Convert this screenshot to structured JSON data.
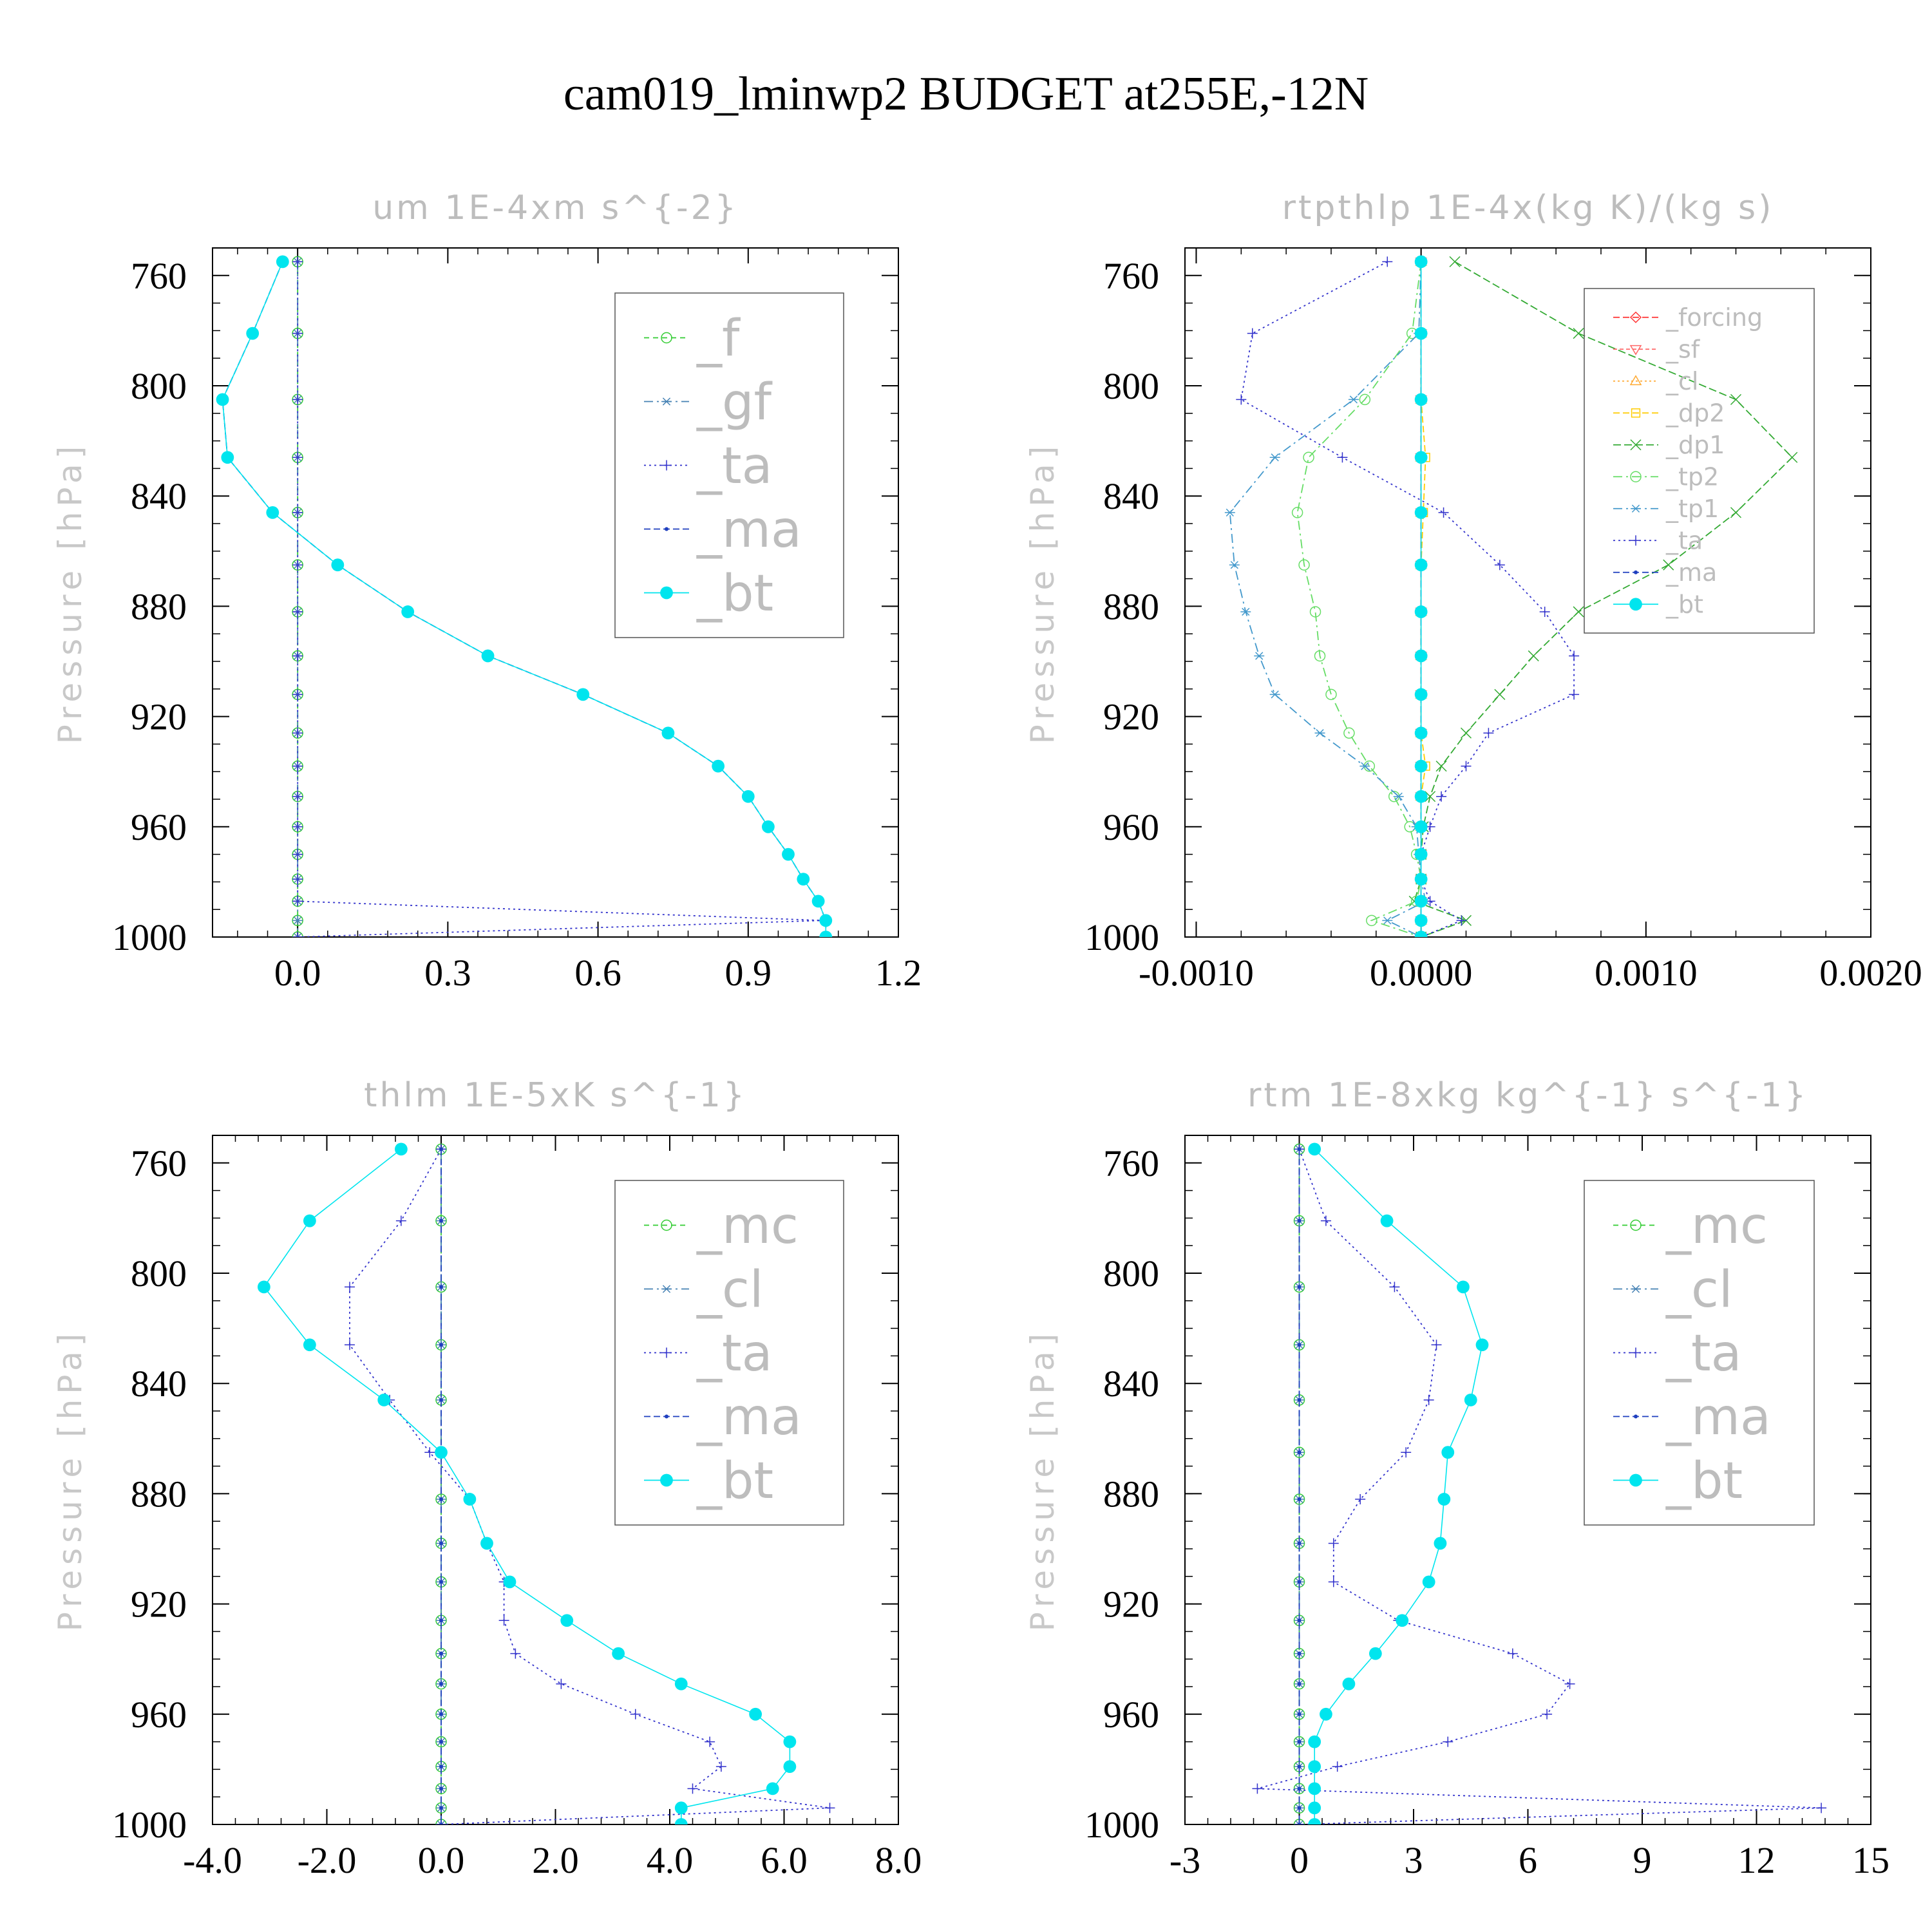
{
  "title": "cam019_lminwp2  BUDGET at255E,-12N",
  "chart_data": [
    {
      "id": "um",
      "type": "line",
      "title": "um   1E-4xm s^{-2}",
      "ylabel": "Pressure [hPa]",
      "xlim": [
        -0.17,
        1.2
      ],
      "ylim": [
        750,
        1000
      ],
      "xticks": [
        0.0,
        0.3,
        0.6,
        0.9,
        1.2
      ],
      "xtick_labels": [
        "0.0",
        "0.3",
        "0.6",
        "0.9",
        "1.2"
      ],
      "yticks": [
        760,
        800,
        840,
        880,
        920,
        960,
        1000
      ],
      "ytick_labels": [
        "760",
        "800",
        "840",
        "880",
        "920",
        "960",
        "1000"
      ],
      "legend_position": "top-right",
      "levels": [
        755,
        781,
        805,
        826,
        846,
        865,
        882,
        898,
        912,
        926,
        938,
        949,
        960,
        970,
        979,
        987,
        994,
        1000
      ],
      "series": [
        {
          "name": "_f",
          "color": "#33cc33",
          "marker": "circle-open",
          "dash": "8,6",
          "values": [
            0,
            0,
            0,
            0,
            0,
            0,
            0,
            0,
            0,
            0,
            0,
            0,
            0,
            0,
            0,
            0,
            0,
            0
          ]
        },
        {
          "name": "_gf",
          "color": "#4682b4",
          "marker": "asterisk",
          "dash": "14,6,3,6",
          "values": [
            0,
            0,
            0,
            0,
            0,
            0,
            0,
            0,
            0,
            0,
            0,
            0,
            0,
            0,
            0,
            0,
            0,
            0
          ]
        },
        {
          "name": "_ta",
          "color": "#3333cc",
          "marker": "plus",
          "dash": "3,5",
          "values": [
            0,
            0,
            0,
            0,
            0,
            0,
            0,
            0,
            0,
            0,
            0,
            0,
            0,
            0,
            0,
            0,
            1.05,
            0
          ]
        },
        {
          "name": "_ma",
          "color": "#1f3fbf",
          "marker": "dot",
          "dash": "10,5",
          "values": [
            -0.03,
            -0.09,
            -0.15,
            -0.14,
            -0.05,
            0.08,
            0.22,
            0.38,
            0.57,
            0.74,
            0.84,
            0.9,
            0.94,
            0.98,
            1.01,
            1.04,
            1.055,
            1.055
          ]
        },
        {
          "name": "_bt",
          "color": "#00e5ee",
          "marker": "dot-filled",
          "dash": "",
          "values": [
            -0.03,
            -0.09,
            -0.15,
            -0.14,
            -0.05,
            0.08,
            0.22,
            0.38,
            0.57,
            0.74,
            0.84,
            0.9,
            0.94,
            0.98,
            1.01,
            1.04,
            1.055,
            1.055
          ]
        }
      ]
    },
    {
      "id": "rtpthlp",
      "type": "line",
      "title": "rtpthlp   1E-4x(kg K)/(kg s)",
      "ylabel": "Pressure [hPa]",
      "xlim": [
        -0.00105,
        0.002
      ],
      "ylim": [
        750,
        1000
      ],
      "xticks": [
        -0.001,
        0.0,
        0.001,
        0.002
      ],
      "xtick_labels": [
        "-0.0010",
        "0.0000",
        "0.0010",
        "0.0020"
      ],
      "yticks": [
        760,
        800,
        840,
        880,
        920,
        960,
        1000
      ],
      "ytick_labels": [
        "760",
        "800",
        "840",
        "880",
        "920",
        "960",
        "1000"
      ],
      "legend_position": "top-right",
      "levels": [
        755,
        781,
        805,
        826,
        846,
        865,
        882,
        898,
        912,
        926,
        938,
        949,
        960,
        970,
        979,
        987,
        994,
        1000
      ],
      "series": [
        {
          "name": "_forcing",
          "color": "#ff3333",
          "marker": "diamond-open",
          "dash": "10,5",
          "values": [
            0,
            0,
            0,
            0,
            0,
            0,
            0,
            0,
            0,
            0,
            0,
            0,
            0,
            0,
            0,
            0,
            0,
            0
          ]
        },
        {
          "name": "_sf",
          "color": "#ff6666",
          "marker": "triangle-down",
          "dash": "6,4",
          "values": [
            0,
            0,
            0,
            0,
            0,
            0,
            0,
            0,
            0,
            0,
            0,
            0,
            0,
            0,
            0,
            0,
            0,
            0
          ]
        },
        {
          "name": "_cl",
          "color": "#ffaa33",
          "marker": "triangle-up",
          "dash": "3,4",
          "values": [
            0,
            0,
            0,
            0,
            0,
            0,
            0,
            0,
            0,
            0,
            0,
            0,
            0,
            0,
            0,
            0,
            0,
            0
          ]
        },
        {
          "name": "_dp2",
          "color": "#ffcc00",
          "marker": "square-open",
          "dash": "10,5",
          "values": [
            0,
            0,
            0,
            2e-05,
            1e-05,
            0,
            0,
            0,
            0,
            0,
            2e-05,
            0,
            0,
            0,
            0,
            0,
            0,
            0
          ]
        },
        {
          "name": "_dp1",
          "color": "#33aa33",
          "marker": "x",
          "dash": "12,5",
          "values": [
            0.00015,
            0.0007,
            0.0014,
            0.00165,
            0.0014,
            0.0011,
            0.0007,
            0.0005,
            0.00035,
            0.0002,
            9e-05,
            4e-05,
            1e-05,
            0,
            0,
            -3e-05,
            0.0002,
            0
          ]
        },
        {
          "name": "_tp2",
          "color": "#66dd66",
          "marker": "circle-open",
          "dash": "14,6,3,6",
          "values": [
            0,
            -4e-05,
            -0.00025,
            -0.0005,
            -0.00055,
            -0.00052,
            -0.00047,
            -0.00045,
            -0.0004,
            -0.00032,
            -0.00023,
            -0.00012,
            -5e-05,
            -2e-05,
            0,
            -2e-05,
            -0.00022,
            0
          ]
        },
        {
          "name": "_tp1",
          "color": "#4499cc",
          "marker": "asterisk",
          "dash": "14,6,3,6",
          "values": [
            0,
            -1e-05,
            -0.0003,
            -0.00065,
            -0.00085,
            -0.00083,
            -0.00078,
            -0.00072,
            -0.00065,
            -0.00045,
            -0.00025,
            -0.0001,
            -2e-05,
            -1e-05,
            0,
            2e-05,
            -0.00015,
            0
          ]
        },
        {
          "name": "_ta",
          "color": "#3333cc",
          "marker": "plus",
          "dash": "3,5",
          "values": [
            -0.00015,
            -0.00075,
            -0.0008,
            -0.00035,
            0.0001,
            0.00035,
            0.00055,
            0.00068,
            0.00068,
            0.0003,
            0.0002,
            9e-05,
            4e-05,
            0,
            0,
            4e-05,
            0.00018,
            0
          ]
        },
        {
          "name": "_ma",
          "color": "#1f3fbf",
          "marker": "dot",
          "dash": "10,5",
          "values": [
            0,
            0,
            0,
            0,
            0,
            0,
            0,
            0,
            0,
            0,
            0,
            0,
            0,
            0,
            0,
            0,
            0,
            0
          ]
        },
        {
          "name": "_bt",
          "color": "#00e5ee",
          "marker": "dot-filled",
          "dash": "",
          "values": [
            0,
            0,
            0,
            0,
            0,
            0,
            0,
            0,
            0,
            0,
            0,
            0,
            0,
            0,
            0,
            0,
            0,
            0
          ]
        }
      ]
    },
    {
      "id": "thlm",
      "type": "line",
      "title": "thlm   1E-5xK s^{-1}",
      "ylabel": "Pressure [hPa]",
      "xlim": [
        -4.0,
        8.0
      ],
      "ylim": [
        750,
        1000
      ],
      "xticks": [
        -4.0,
        -2.0,
        0.0,
        2.0,
        4.0,
        6.0,
        8.0
      ],
      "xtick_labels": [
        "-4.0",
        "-2.0",
        "0.0",
        "2.0",
        "4.0",
        "6.0",
        "8.0"
      ],
      "yticks": [
        760,
        800,
        840,
        880,
        920,
        960,
        1000
      ],
      "ytick_labels": [
        "760",
        "800",
        "840",
        "880",
        "920",
        "960",
        "1000"
      ],
      "legend_position": "top-right",
      "levels": [
        755,
        781,
        805,
        826,
        846,
        865,
        882,
        898,
        912,
        926,
        938,
        949,
        960,
        970,
        979,
        987,
        994,
        1000
      ],
      "series": [
        {
          "name": "_mc",
          "color": "#33cc33",
          "marker": "circle-open",
          "dash": "8,6",
          "values": [
            0,
            0,
            0,
            0,
            0,
            0,
            0,
            0,
            0,
            0,
            0,
            0,
            0,
            0,
            0,
            0,
            0,
            0
          ]
        },
        {
          "name": "_cl",
          "color": "#4682b4",
          "marker": "asterisk",
          "dash": "14,6,3,6",
          "values": [
            0,
            0,
            0,
            0,
            0,
            0,
            0,
            0,
            0,
            0,
            0,
            0,
            0,
            0,
            0,
            0,
            0,
            0
          ]
        },
        {
          "name": "_ta",
          "color": "#3333cc",
          "marker": "plus",
          "dash": "3,5",
          "values": [
            0,
            -0.7,
            -1.6,
            -1.6,
            -0.9,
            -0.2,
            0.5,
            0.8,
            1.1,
            1.1,
            1.3,
            2.1,
            3.4,
            4.7,
            4.9,
            4.4,
            6.8,
            0
          ]
        },
        {
          "name": "_ma",
          "color": "#1f3fbf",
          "marker": "dot",
          "dash": "10,5",
          "values": [
            0,
            0,
            0,
            0,
            0,
            0,
            0,
            0,
            0,
            0,
            0,
            0,
            0,
            0,
            0,
            0,
            0,
            0
          ]
        },
        {
          "name": "_bt",
          "color": "#00e5ee",
          "marker": "dot-filled",
          "dash": "",
          "values": [
            -0.7,
            -2.3,
            -3.1,
            -2.3,
            -1.0,
            0.0,
            0.5,
            0.8,
            1.2,
            2.2,
            3.1,
            4.2,
            5.5,
            6.1,
            6.1,
            5.8,
            4.2,
            4.2
          ]
        }
      ]
    },
    {
      "id": "rtm",
      "type": "line",
      "title": "rtm   1E-8xkg kg^{-1} s^{-1}",
      "ylabel": "Pressure [hPa]",
      "xlim": [
        -3,
        15
      ],
      "ylim": [
        750,
        1000
      ],
      "xticks": [
        -3,
        0,
        3,
        6,
        9,
        12,
        15
      ],
      "xtick_labels": [
        "-3",
        "0",
        "3",
        "6",
        "9",
        "12",
        "15"
      ],
      "yticks": [
        760,
        800,
        840,
        880,
        920,
        960,
        1000
      ],
      "ytick_labels": [
        "760",
        "800",
        "840",
        "880",
        "920",
        "960",
        "1000"
      ],
      "legend_position": "top-right",
      "levels": [
        755,
        781,
        805,
        826,
        846,
        865,
        882,
        898,
        912,
        926,
        938,
        949,
        960,
        970,
        979,
        987,
        994,
        1000
      ],
      "series": [
        {
          "name": "_mc",
          "color": "#33cc33",
          "marker": "circle-open",
          "dash": "8,6",
          "values": [
            0,
            0,
            0,
            0,
            0,
            0,
            0,
            0,
            0,
            0,
            0,
            0,
            0,
            0,
            0,
            0,
            0,
            0
          ]
        },
        {
          "name": "_cl",
          "color": "#4682b4",
          "marker": "asterisk",
          "dash": "14,6,3,6",
          "values": [
            0,
            0,
            0,
            0,
            0,
            0,
            0,
            0,
            0,
            0,
            0,
            0,
            0,
            0,
            0,
            0,
            0,
            0
          ]
        },
        {
          "name": "_ta",
          "color": "#3333cc",
          "marker": "plus",
          "dash": "3,5",
          "values": [
            0,
            0.7,
            2.5,
            3.6,
            3.4,
            2.8,
            1.6,
            0.9,
            0.9,
            2.6,
            5.6,
            7.1,
            6.5,
            3.9,
            1.0,
            -1.1,
            13.7,
            0
          ]
        },
        {
          "name": "_ma",
          "color": "#1f3fbf",
          "marker": "dot",
          "dash": "10,5",
          "values": [
            0,
            0,
            0,
            0,
            0,
            0,
            0,
            0,
            0,
            0,
            0,
            0,
            0,
            0,
            0,
            0,
            0,
            0
          ]
        },
        {
          "name": "_bt",
          "color": "#00e5ee",
          "marker": "dot-filled",
          "dash": "",
          "values": [
            0.4,
            2.3,
            4.3,
            4.8,
            4.5,
            3.9,
            3.8,
            3.7,
            3.4,
            2.7,
            2.0,
            1.3,
            0.7,
            0.4,
            0.4,
            0.4,
            0.4,
            0.4
          ]
        }
      ]
    }
  ]
}
